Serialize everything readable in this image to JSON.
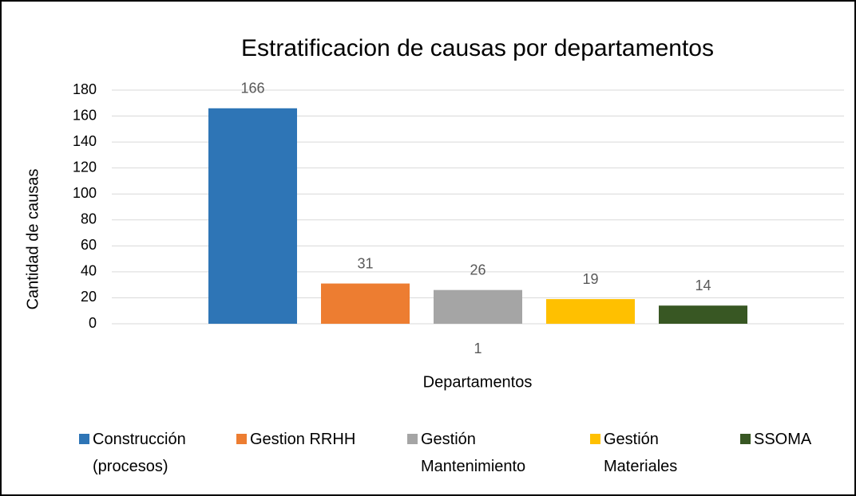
{
  "chart_data": {
    "type": "bar",
    "title": "Estratificacion de causas por departamentos",
    "x_label": "Departamentos",
    "y_label": "Cantidad de causas",
    "categories": [
      "1"
    ],
    "series": [
      {
        "name": "Construcción (procesos)",
        "color": "#2e75b6",
        "values": [
          166
        ]
      },
      {
        "name": "Gestion RRHH",
        "color": "#ed7d31",
        "values": [
          31
        ]
      },
      {
        "name": "Gestión Mantenimiento",
        "color": "#a5a5a5",
        "values": [
          26
        ]
      },
      {
        "name": "Gestión Materiales",
        "color": "#ffc000",
        "values": [
          19
        ]
      },
      {
        "name": "SSOMA",
        "color": "#385723",
        "values": [
          14
        ]
      }
    ],
    "ylim": [
      0,
      180
    ],
    "yticks": [
      0,
      20,
      40,
      60,
      80,
      100,
      120,
      140,
      160,
      180
    ],
    "grid": true,
    "legend": "bottom"
  }
}
